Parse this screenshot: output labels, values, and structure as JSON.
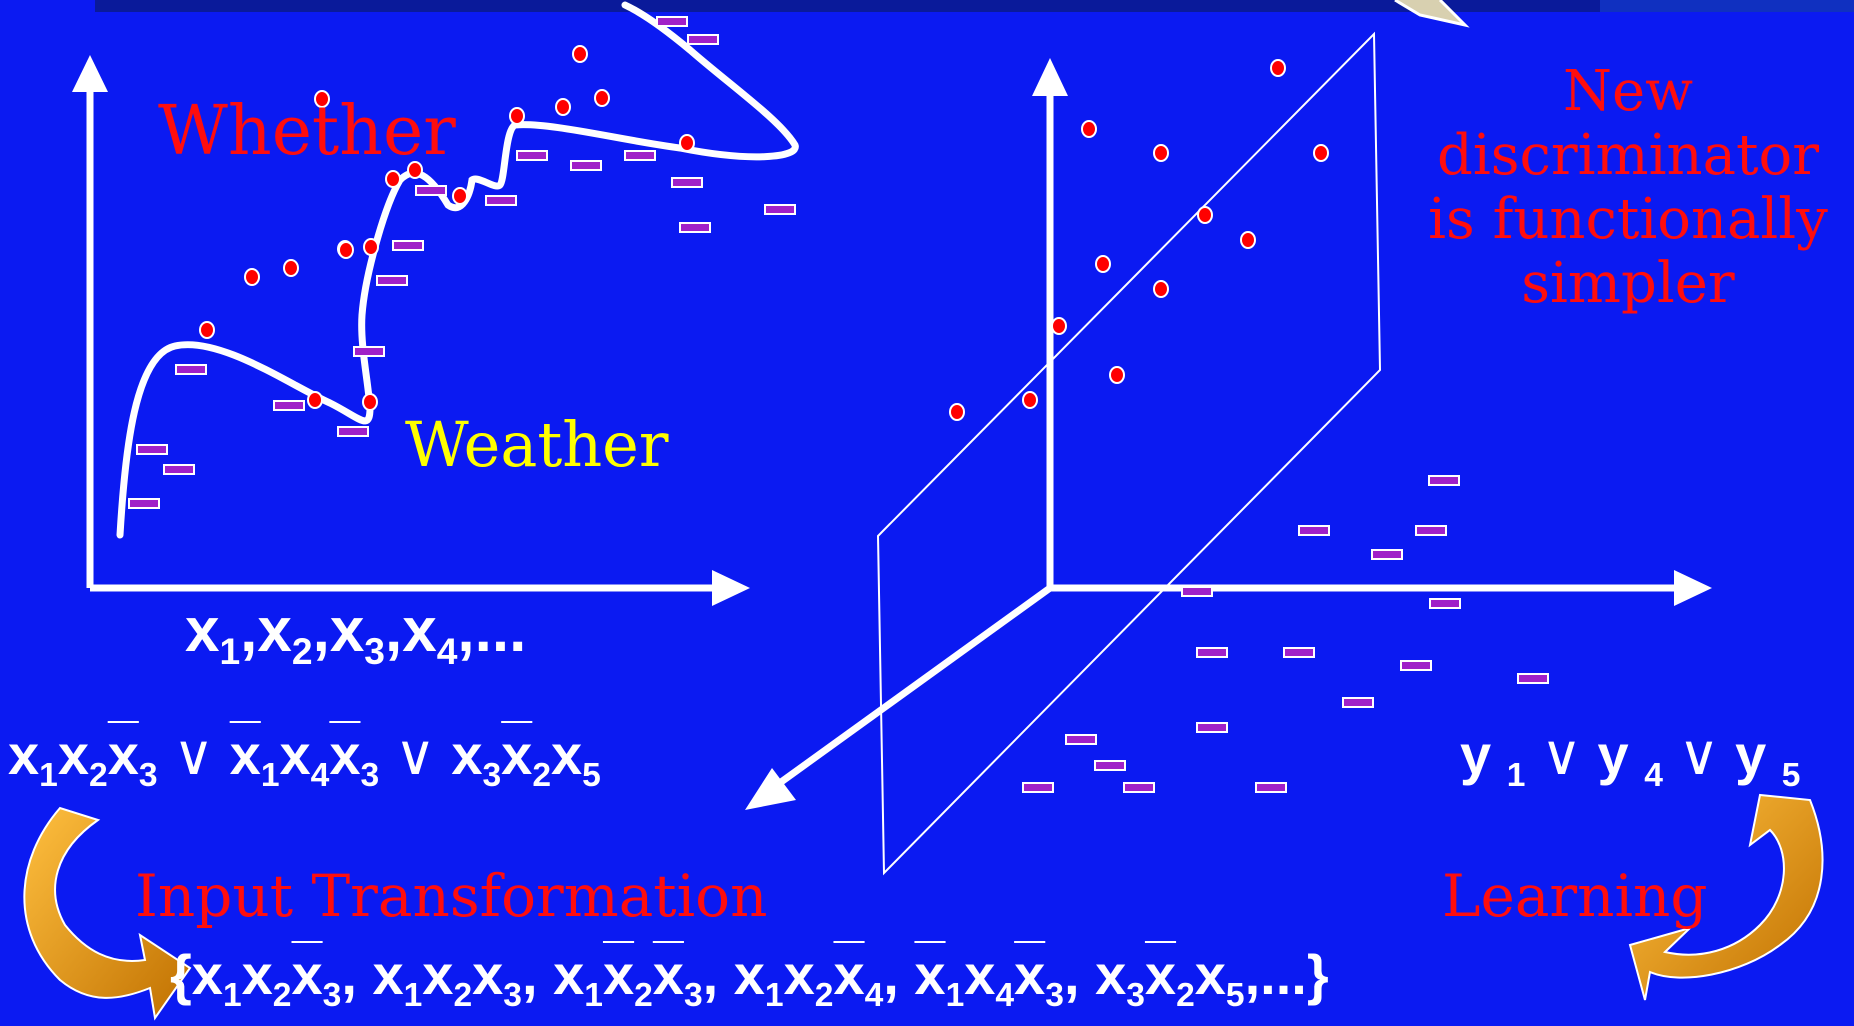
{
  "labels": {
    "whether": "Whether",
    "weather": "Weather",
    "new_discriminator": [
      "New",
      "discriminator",
      "is functionally",
      "simpler"
    ],
    "input_transformation": "Input Transformation",
    "learning": "Learning"
  },
  "formulas": {
    "x_axis": "x1,x2,x3,x4,...",
    "conjunction": "x1x2¬x3 ∨ ¬x1x4¬x3 ∨ x3¬x2x5",
    "disjunction": "y1 ∨ y4 ∨ y5",
    "feature_set": "{x1x2¬x3, x1x2x3, x1¬x2¬x3, x1x2¬x4, ¬x1x4¬x3, x3¬x2x5, ...}"
  },
  "parts": {
    "x1": "x",
    "s1": "1",
    "s2": "2",
    "s3": "3",
    "s4": "4",
    "s5": "5",
    "comma": ",",
    "ellipsis": "...",
    "or": "∨",
    "y": "y",
    "lbrace": "{",
    "rbrace": "}"
  },
  "colors": {
    "background": "#0b1af2",
    "point_red": "#ff0000",
    "point_purple": "#a020c8",
    "text_red": "#ff0d0d",
    "text_yellow": "#ffff00",
    "arrow_orange": "#f0a020"
  }
}
